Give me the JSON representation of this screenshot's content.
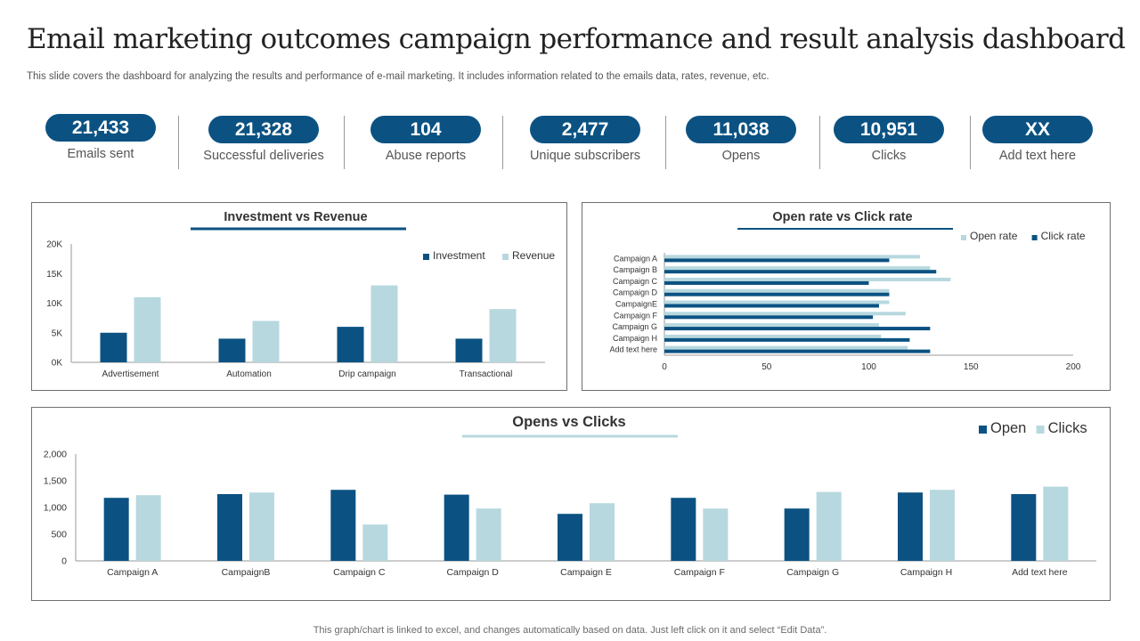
{
  "title": "Email marketing outcomes campaign performance and result analysis dashboard",
  "subtitle": "This slide covers the dashboard for analyzing the results and performance of e-mail marketing. It includes information related to the emails data, rates, revenue, etc.",
  "kpis": [
    {
      "value": "21,433",
      "label": "Emails sent"
    },
    {
      "value": "21,328",
      "label": "Successful deliveries"
    },
    {
      "value": "104",
      "label": "Abuse reports"
    },
    {
      "value": "2,477",
      "label": "Unique subscribers"
    },
    {
      "value": "11,038",
      "label": "Opens"
    },
    {
      "value": "10,951",
      "label": "Clicks"
    },
    {
      "value": "XX",
      "label": "Add text here"
    }
  ],
  "colors": {
    "dark": "#0b5282",
    "light": "#b7d8df",
    "axis": "#9a9a9a"
  },
  "chart_data": [
    {
      "type": "bar",
      "title": "Investment vs Revenue",
      "categories": [
        "Advertisement",
        "Automation",
        "Drip campaign",
        "Transactional"
      ],
      "series": [
        {
          "name": "Investment",
          "values": [
            5000,
            4000,
            6000,
            4000
          ],
          "color": "#0b5282"
        },
        {
          "name": "Revenue",
          "values": [
            11000,
            7000,
            13000,
            9000
          ],
          "color": "#b7d8df"
        }
      ],
      "ylim": [
        0,
        20000
      ],
      "yticks": [
        0,
        5000,
        10000,
        15000,
        20000
      ],
      "ytick_labels": [
        "0K",
        "5K",
        "10K",
        "15K",
        "20K"
      ],
      "legend": "top-right",
      "grid": false
    },
    {
      "type": "bar",
      "orientation": "horizontal",
      "title": "Open rate vs Click rate",
      "categories": [
        "Campaign A",
        "Campaign B",
        "Campaign C",
        "Campaign D",
        "CampaignE",
        "Campaign F",
        "Campaign G",
        "Campaign H",
        "Add text here"
      ],
      "series": [
        {
          "name": "Open rate",
          "values": [
            125,
            130,
            140,
            110,
            110,
            118,
            105,
            106,
            119
          ],
          "color": "#b7d8df"
        },
        {
          "name": "Click rate",
          "values": [
            110,
            133,
            100,
            110,
            105,
            102,
            130,
            120,
            130
          ],
          "color": "#0b5282"
        }
      ],
      "xlim": [
        0,
        200
      ],
      "xticks": [
        0,
        50,
        100,
        150,
        200
      ],
      "legend": "top-right",
      "grid": false
    },
    {
      "type": "bar",
      "title": "Opens vs Clicks",
      "categories": [
        "Campaign A",
        "CampaignB",
        "Campaign C",
        "Campaign D",
        "Campaign E",
        "Campaign F",
        "Campaign G",
        "Campaign H",
        "Add text here"
      ],
      "series": [
        {
          "name": "Open",
          "values": [
            1180,
            1250,
            1330,
            1240,
            880,
            1180,
            980,
            1280,
            1250
          ],
          "color": "#0b5282"
        },
        {
          "name": "Clicks",
          "values": [
            1230,
            1280,
            680,
            980,
            1080,
            980,
            1290,
            1330,
            1390
          ],
          "color": "#b7d8df"
        }
      ],
      "ylim": [
        0,
        2000
      ],
      "yticks": [
        0,
        500,
        1000,
        1500,
        2000
      ],
      "ytick_labels": [
        "0",
        "500",
        "1,000",
        "1,500",
        "2,000"
      ],
      "legend": "top-right",
      "grid": false
    }
  ],
  "footer": "This graph/chart is linked to excel,  and changes automatically based on data. Just left click on it and select “Edit Data”."
}
